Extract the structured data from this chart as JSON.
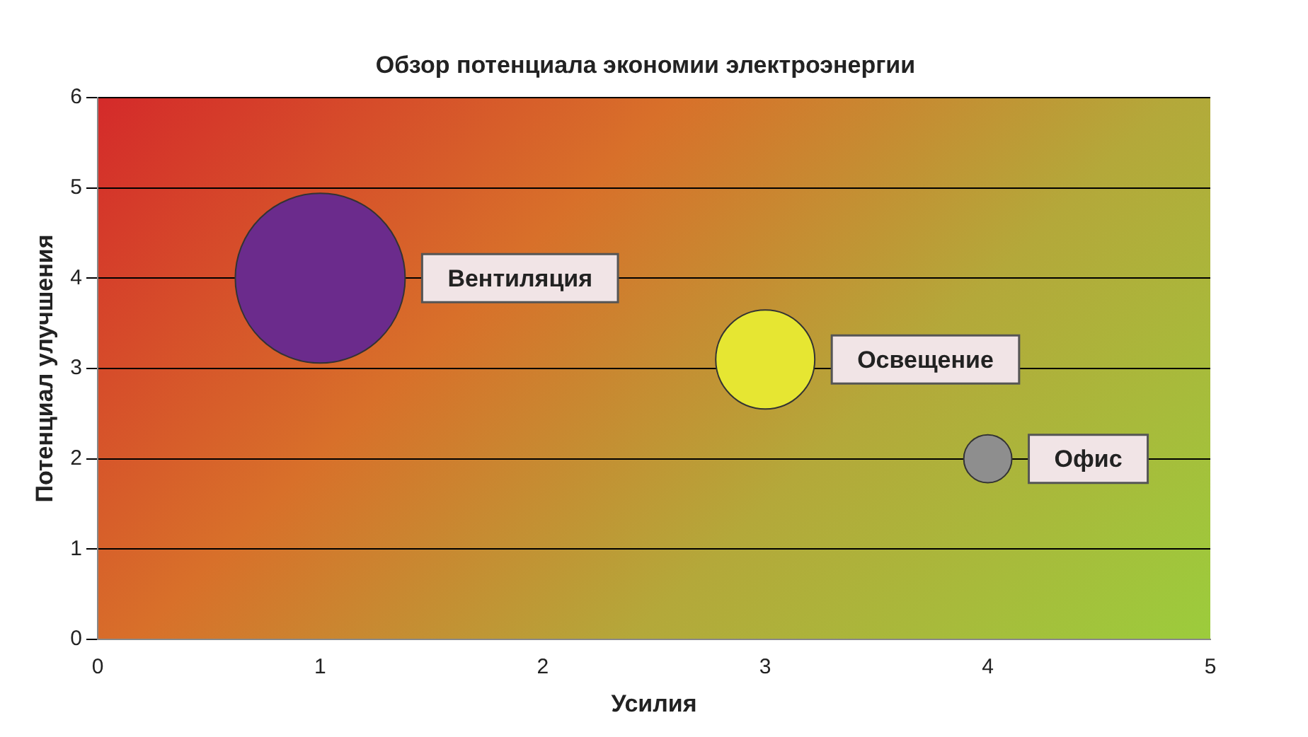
{
  "chart_data": {
    "type": "bubble",
    "title": "Обзор потенциала экономии электроэнергии",
    "xlabel": "Усилия",
    "ylabel": "Потенциал улучшения",
    "xlim": [
      0,
      5
    ],
    "xticks": [
      0,
      1,
      2,
      3,
      4,
      5
    ],
    "ylim": [
      0,
      6
    ],
    "yticks": [
      0,
      1,
      2,
      3,
      4,
      5,
      6
    ],
    "grid": "y",
    "series": [
      {
        "name": "Вентиляция",
        "color": "#6b2b8c",
        "x": [
          1
        ],
        "values": [
          4
        ],
        "sizes": [
          1
        ]
      },
      {
        "name": "Освещение",
        "color": "#e6e632",
        "x": [
          3
        ],
        "values": [
          3.1
        ],
        "sizes": [
          0.34
        ]
      },
      {
        "name": "Офис",
        "color": "#8e8e8e",
        "x": [
          4
        ],
        "values": [
          2
        ],
        "sizes": [
          0.08
        ]
      }
    ]
  }
}
